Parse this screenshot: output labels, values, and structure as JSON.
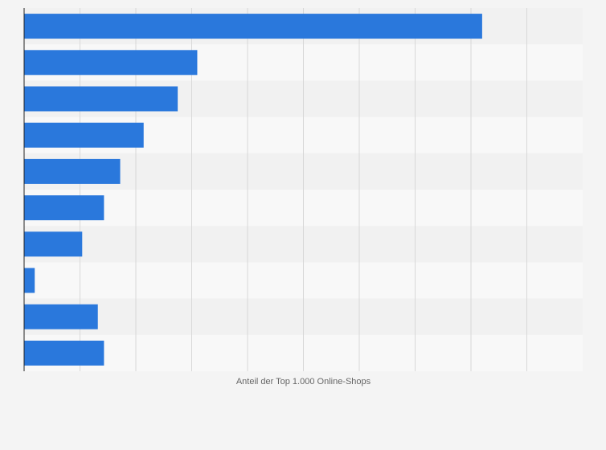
{
  "chart_data": {
    "type": "bar",
    "orientation": "horizontal",
    "categories": [
      "",
      "",
      "",
      "",
      "",
      "",
      "",
      "",
      "",
      ""
    ],
    "values": [
      82,
      31,
      27.5,
      21.4,
      17.2,
      14.3,
      10.4,
      1.9,
      13.2,
      14.3
    ],
    "xlabel": "Anteil der Top 1.000 Online-Shops",
    "ylabel": "",
    "xlim": [
      0,
      100
    ],
    "grid": true,
    "legend": "none"
  },
  "colors": {
    "bar": "#2a78dc",
    "background": "#f4f4f4",
    "row_light": "#f8f8f8",
    "row_dark": "#f1f1f1",
    "grid": "#d8d8d8",
    "axis": "#222222"
  }
}
